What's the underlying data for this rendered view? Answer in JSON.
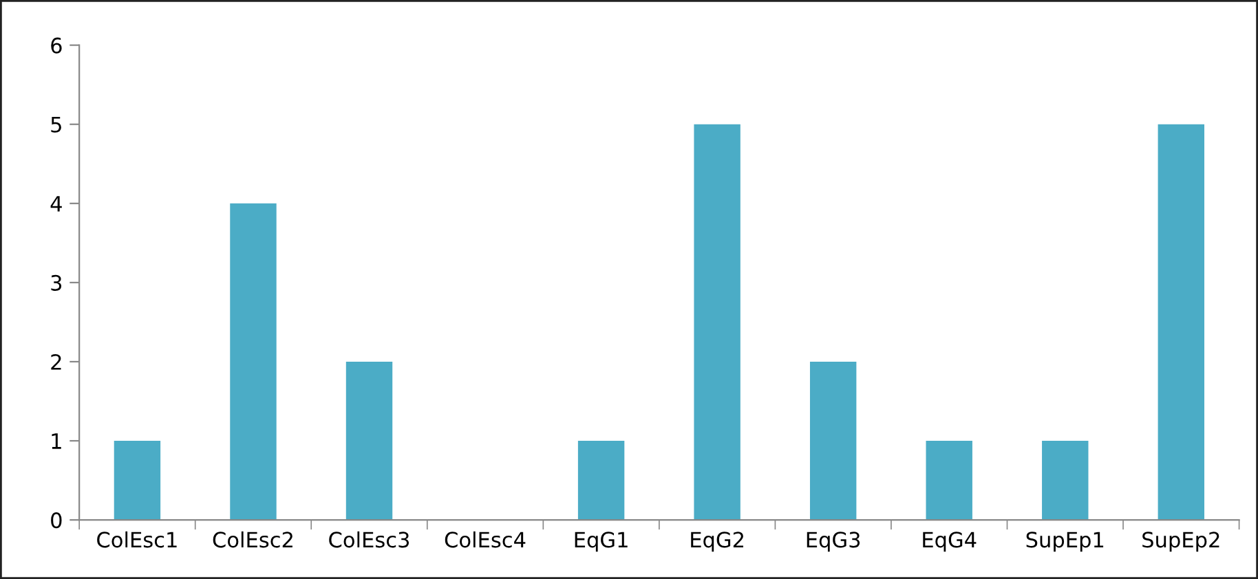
{
  "chart_data": {
    "type": "bar",
    "categories": [
      "ColEsc1",
      "ColEsc2",
      "ColEsc3",
      "ColEsc4",
      "EqG1",
      "EqG2",
      "EqG3",
      "EqG4",
      "SupEp1",
      "SupEp2"
    ],
    "values": [
      1,
      4,
      2,
      0,
      1,
      5,
      2,
      1,
      1,
      5
    ],
    "color": "#4bacc6",
    "ylim": [
      0,
      6
    ],
    "yticks": [
      0,
      1,
      2,
      3,
      4,
      5,
      6
    ],
    "grid": false
  }
}
